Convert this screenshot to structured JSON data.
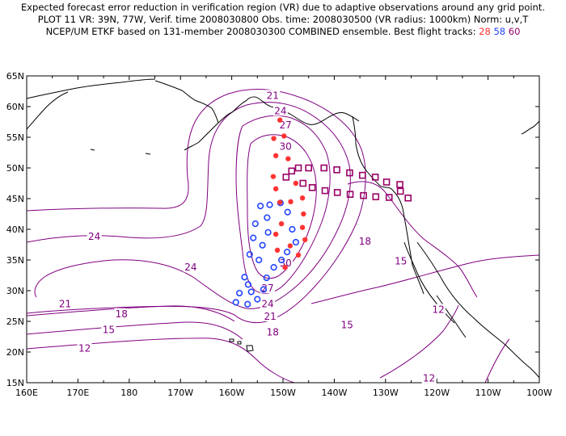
{
  "header": {
    "line1": "Expected forecast error reduction in verification region (VR) due to adaptive observations around any grid point.",
    "line2": "PLOT 11 VR: 39N, 77W, Verif. time 2008030800 Obs. time: 2008030500 (VR radius: 1000km) Norm: u,v,T",
    "line3_prefix": "NCEP/UM ETKF based on 131-member 2008030300 COMBINED ensemble.  Best flight tracks:",
    "track_red": "28",
    "track_blue": "58",
    "track_purple": "60"
  },
  "axes": {
    "lon_labels": [
      "160E",
      "170E",
      "180",
      "170W",
      "160W",
      "150W",
      "140W",
      "130W",
      "120W",
      "110W",
      "100W"
    ],
    "lat_labels": [
      "15N",
      "20N",
      "25N",
      "30N",
      "35N",
      "40N",
      "45N",
      "50N",
      "55N",
      "60N",
      "65N"
    ]
  },
  "contour_labels": [
    {
      "text": "21",
      "lon": -152,
      "lat": 61.8
    },
    {
      "text": "24",
      "lon": -150.5,
      "lat": 59.3
    },
    {
      "text": "27",
      "lon": -149.5,
      "lat": 57.0
    },
    {
      "text": "30",
      "lon": -149.5,
      "lat": 53.5
    },
    {
      "text": "24",
      "lon": 173.2,
      "lat": 38.8
    },
    {
      "text": "24",
      "lon": -168.0,
      "lat": 33.8
    },
    {
      "text": "30",
      "lon": -149.5,
      "lat": 34.5
    },
    {
      "text": "27",
      "lon": -153.0,
      "lat": 30.4
    },
    {
      "text": "24",
      "lon": -153.0,
      "lat": 27.8
    },
    {
      "text": "21",
      "lon": 167.5,
      "lat": 27.8
    },
    {
      "text": "21",
      "lon": -152.5,
      "lat": 25.8
    },
    {
      "text": "18",
      "lon": 178.5,
      "lat": 26.2
    },
    {
      "text": "18",
      "lon": -152.0,
      "lat": 23.2
    },
    {
      "text": "15",
      "lon": 176.0,
      "lat": 23.6
    },
    {
      "text": "15",
      "lon": -137.5,
      "lat": 24.4
    },
    {
      "text": "15",
      "lon": -127.0,
      "lat": 34.8
    },
    {
      "text": "18",
      "lon": -134.0,
      "lat": 38.0
    },
    {
      "text": "12",
      "lon": 171.3,
      "lat": 20.6
    },
    {
      "text": "12",
      "lon": -119.7,
      "lat": 26.9
    },
    {
      "text": "12",
      "lon": -121.5,
      "lat": 15.7
    }
  ],
  "tracks": {
    "red": [
      [
        -150.6,
        57.8
      ],
      [
        -149.8,
        55.2
      ],
      [
        -151.8,
        54.8
      ],
      [
        -151.4,
        52.0
      ],
      [
        -149.0,
        51.5
      ],
      [
        -151.9,
        48.6
      ],
      [
        -147.5,
        47.5
      ],
      [
        -151.4,
        46.6
      ],
      [
        -148.5,
        44.5
      ],
      [
        -146.2,
        45.1
      ],
      [
        -150.6,
        44.4
      ],
      [
        -146.0,
        42.5
      ],
      [
        -150.3,
        40.9
      ],
      [
        -146.2,
        40.3
      ],
      [
        -151.4,
        39.2
      ],
      [
        -145.7,
        38.3
      ],
      [
        -148.6,
        37.3
      ],
      [
        -151.1,
        36.6
      ],
      [
        -147.0,
        35.8
      ],
      [
        -149.6,
        33.8
      ]
    ],
    "blue": [
      [
        -150.5,
        44.3
      ],
      [
        -152.6,
        44.0
      ],
      [
        -154.4,
        43.8
      ],
      [
        -149.1,
        42.8
      ],
      [
        -153.1,
        41.9
      ],
      [
        -155.4,
        40.9
      ],
      [
        -148.2,
        40.0
      ],
      [
        -152.9,
        39.5
      ],
      [
        -155.8,
        38.6
      ],
      [
        -147.5,
        37.9
      ],
      [
        -154.0,
        37.4
      ],
      [
        -149.2,
        36.3
      ],
      [
        -156.5,
        35.9
      ],
      [
        -150.3,
        35.0
      ],
      [
        -154.7,
        35.0
      ],
      [
        -151.8,
        33.8
      ],
      [
        -157.5,
        32.2
      ],
      [
        -153.2,
        32.1
      ],
      [
        -156.8,
        31.0
      ],
      [
        -153.8,
        30.2
      ],
      [
        -158.5,
        29.6
      ],
      [
        -156.2,
        29.8
      ],
      [
        -155.0,
        28.6
      ],
      [
        -159.2,
        28.1
      ],
      [
        -156.9,
        27.8
      ]
    ],
    "purple": [
      [
        -147.0,
        50.0
      ],
      [
        -145.0,
        50.0
      ],
      [
        -142.0,
        50.0
      ],
      [
        -139.5,
        49.7
      ],
      [
        -137.0,
        49.2
      ],
      [
        -134.5,
        48.8
      ],
      [
        -132.0,
        48.5
      ],
      [
        -129.8,
        47.7
      ],
      [
        -127.2,
        47.3
      ],
      [
        -148.3,
        49.5
      ],
      [
        -149.4,
        48.5
      ],
      [
        -146.1,
        47.5
      ],
      [
        -144.3,
        46.8
      ],
      [
        -141.8,
        46.3
      ],
      [
        -139.4,
        46.0
      ],
      [
        -136.9,
        45.7
      ],
      [
        -134.3,
        45.5
      ],
      [
        -131.9,
        45.3
      ],
      [
        -129.3,
        45.2
      ],
      [
        -127.1,
        46.2
      ],
      [
        -125.6,
        45.1
      ]
    ]
  },
  "colors": {
    "contour": "#800080",
    "red": "#ff3333",
    "blue": "#2244ff",
    "purple": "#990066",
    "coast": "#000000"
  }
}
